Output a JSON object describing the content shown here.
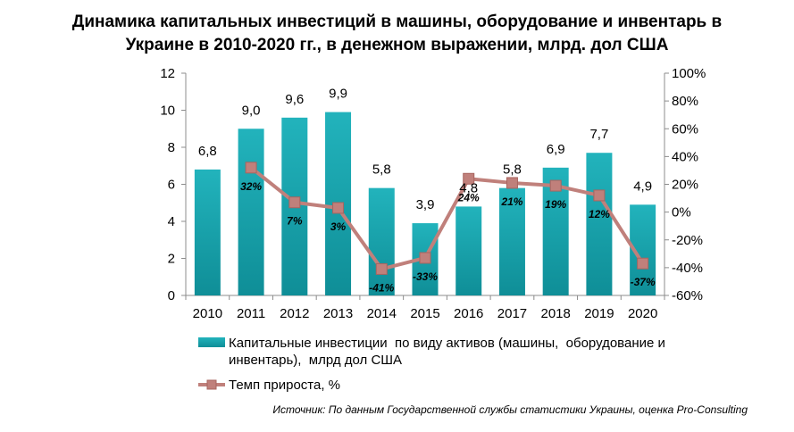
{
  "title_line1": "Динамика капитальных инвестиций в машины, оборудование и инвентарь в",
  "title_line2": "Украине в 2010-2020 гг., в денежном выражении, млрд. дол США",
  "source": "Источник: По данным Государственной службы статистики Украины, оценка Pro-Consulting",
  "chart_data": {
    "type": "bar",
    "categories": [
      "2010",
      "2011",
      "2012",
      "2013",
      "2014",
      "2015",
      "2016",
      "2017",
      "2018",
      "2019",
      "2020"
    ],
    "series": [
      {
        "name": "Капитальные инвестиции по виду активов (машины, оборудование и инвентарь), млрд дол США",
        "type": "bar",
        "values": [
          6.8,
          9.0,
          9.6,
          9.9,
          5.8,
          3.9,
          4.8,
          5.8,
          6.9,
          7.7,
          4.9
        ],
        "labels": [
          "6,8",
          "9,0",
          "9,6",
          "9,9",
          "5,8",
          "3,9",
          "4,8",
          "5,8",
          "6,9",
          "7,7",
          "4,9"
        ],
        "color": "#1aa3ad"
      },
      {
        "name": "Темп прироста, %",
        "type": "line",
        "axis": "right",
        "values": [
          null,
          32,
          7,
          3,
          -41,
          -33,
          24,
          21,
          19,
          12,
          -37
        ],
        "labels": [
          "",
          "32%",
          "7%",
          "3%",
          "-41%",
          "-33%",
          "24%",
          "21%",
          "19%",
          "12%",
          "-37%"
        ],
        "color": "#c0807b"
      }
    ],
    "yleft": {
      "min": 0,
      "max": 12,
      "ticks": [
        "0",
        "2",
        "4",
        "6",
        "8",
        "10",
        "12"
      ]
    },
    "yright": {
      "min": -60,
      "max": 100,
      "ticks": [
        "-60%",
        "-40%",
        "-20%",
        "0%",
        "20%",
        "40%",
        "60%",
        "80%",
        "100%"
      ]
    },
    "legend_lines": [
      "Капитальные инвестиции  по виду активов (машины,  оборудование и",
      "инвентарь),  млрд дол США"
    ],
    "legend_placement": "bottom",
    "grid": false
  }
}
